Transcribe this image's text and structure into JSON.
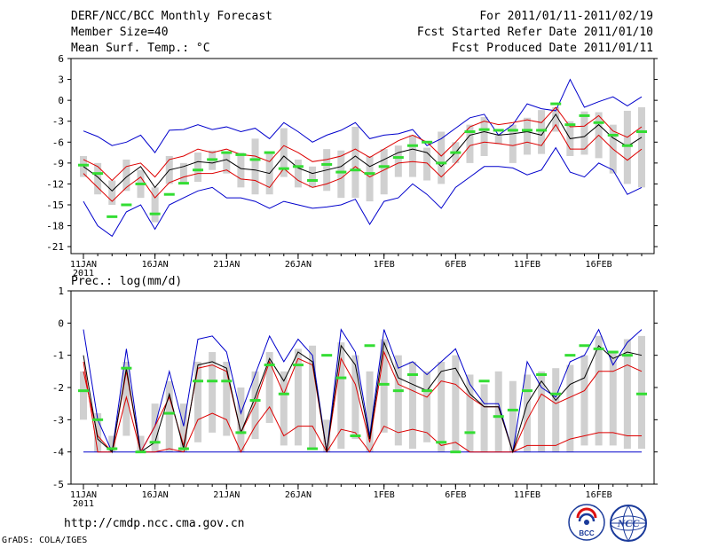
{
  "header": {
    "title": "DERF/NCC/BCC Monthly Forecast",
    "member_size": "Member Size=40",
    "variable": "Mean Surf. Temp.: °C",
    "forecast_period": "For 2011/01/11-2011/02/19",
    "fcst_started": "Fcst Started Refer Date 2011/01/10",
    "fcst_produced": "Fcst Produced Date 2011/01/11"
  },
  "footer": {
    "url": "http://cmdp.ncc.cma.gov.cn",
    "grads": "GrADS: COLA/IGES",
    "logo_bcc": "BCC",
    "logo_ncc": "NCC"
  },
  "colors": {
    "envelope": "#0000cc",
    "quartile": "#dd0000",
    "mean": "#000000",
    "box": "#d0d0d0",
    "observed": "#33dd33",
    "frame": "#000000"
  },
  "chart_data": [
    {
      "type": "line",
      "title": "Mean Surf. Temp.: °C",
      "ylim": [
        -22,
        6
      ],
      "yticks": [
        "6",
        "3",
        "0",
        "-3",
        "-6",
        "-9",
        "-12",
        "-15",
        "-18",
        "-21"
      ],
      "xtick_labels": [
        "11JAN",
        "16JAN",
        "21JAN",
        "26JAN",
        "1FEB",
        "6FEB",
        "11FEB",
        "16FEB"
      ],
      "xtick_year": "2011",
      "x_days": 40,
      "series": [
        {
          "name": "max",
          "values": [
            -4.4,
            -5.2,
            -6.5,
            -6,
            -5,
            -7.5,
            -4.3,
            -4.2,
            -3.5,
            -4.2,
            -3.8,
            -4.5,
            -4,
            -5.5,
            -3.2,
            -4.5,
            -6,
            -5,
            -4.3,
            -3.2,
            -5.5,
            -5,
            -4.8,
            -4.2,
            -6.5,
            -5.5,
            -4,
            -2.5,
            -2,
            -5,
            -3.5,
            -0.5,
            -1.2,
            -1.5,
            3,
            -1,
            -0.2,
            0.5,
            -0.8,
            0.5
          ]
        },
        {
          "name": "q75",
          "values": [
            -8.5,
            -9.5,
            -11.5,
            -9.5,
            -9,
            -11,
            -8.5,
            -8,
            -7,
            -7.5,
            -7,
            -7.8,
            -8,
            -8.8,
            -6.5,
            -7.5,
            -8.8,
            -8.5,
            -8,
            -7,
            -8.2,
            -7,
            -5.8,
            -5,
            -6,
            -8,
            -6,
            -3.8,
            -3,
            -3.5,
            -3.2,
            -2.8,
            -3.2,
            -1,
            -3.8,
            -3.7,
            -2.2,
            -4.4,
            -5.3,
            -3.8
          ]
        },
        {
          "name": "mean",
          "values": [
            -9.5,
            -11,
            -13,
            -11,
            -9.5,
            -12.5,
            -10,
            -9.5,
            -8.8,
            -9,
            -8.5,
            -9.8,
            -10,
            -10.5,
            -8,
            -9.7,
            -10.5,
            -10,
            -9.5,
            -8,
            -9.5,
            -8.5,
            -7.5,
            -7,
            -7.5,
            -9.5,
            -7.5,
            -5,
            -4.5,
            -5,
            -4.8,
            -4.5,
            -5,
            -2,
            -5.5,
            -5.2,
            -3.5,
            -5.4,
            -6.6,
            -5.3
          ]
        },
        {
          "name": "q25",
          "values": [
            -10.5,
            -12.5,
            -14.5,
            -12.5,
            -11,
            -14,
            -11.8,
            -11,
            -10.5,
            -10.5,
            -10,
            -11.3,
            -11.5,
            -12.5,
            -9.8,
            -11.5,
            -12.5,
            -12,
            -11.2,
            -9.5,
            -11,
            -10,
            -9,
            -8.8,
            -9,
            -11,
            -9,
            -6.5,
            -6,
            -6.2,
            -6.5,
            -6,
            -6.5,
            -3.5,
            -7,
            -7,
            -5,
            -7,
            -8.6,
            -7
          ]
        },
        {
          "name": "min",
          "values": [
            -14.5,
            -18,
            -19.5,
            -16,
            -15,
            -18.5,
            -15,
            -14,
            -13,
            -12.5,
            -14,
            -14,
            -14.5,
            -15.5,
            -14.5,
            -15,
            -15.5,
            -15.3,
            -15,
            -14.2,
            -17.8,
            -14.5,
            -14,
            -12,
            -13.5,
            -15.5,
            -12.5,
            -11,
            -9.5,
            -9.5,
            -9.7,
            -10.7,
            -10,
            -6.8,
            -10.3,
            -11,
            -9,
            -10,
            -13.5,
            -12.5
          ]
        },
        {
          "name": "box_top",
          "values": [
            -8,
            -9,
            -11.5,
            -8.5,
            -10,
            -12.5,
            -8,
            -9,
            -7.5,
            -7.2,
            -7.5,
            -7.5,
            -5.5,
            -7.5,
            -4,
            -8.5,
            -9.5,
            -7,
            -7.2,
            -3.8,
            -8,
            -7,
            -6.5,
            -5,
            -6.8,
            -4.5,
            -6,
            -3.5,
            -2.4,
            -5,
            -3.5,
            -2.5,
            -1.4,
            -1,
            -3,
            -1.6,
            -1.7,
            -3.5,
            -1.5,
            -1
          ]
        },
        {
          "name": "box_bottom",
          "values": [
            -11,
            -13.5,
            -15,
            -13,
            -14,
            -17.5,
            -12,
            -12,
            -11.7,
            -10,
            -10.5,
            -12.5,
            -13.5,
            -13.5,
            -11,
            -12.5,
            -12.5,
            -13,
            -14,
            -14,
            -14.5,
            -13.5,
            -11,
            -11,
            -11.5,
            -12,
            -9,
            -9,
            -8,
            -6.3,
            -9,
            -7.8,
            -7.7,
            -4.5,
            -8,
            -7.8,
            -8.3,
            -10.5,
            -12,
            -12.5
          ]
        },
        {
          "name": "observed",
          "values": [
            -9.3,
            -10.5,
            -16.7,
            -15,
            -12,
            -16.3,
            -13.5,
            -11.9,
            -10,
            -8.5,
            -7.5,
            -7.8,
            -8.5,
            -7.5,
            -9.8,
            -9.5,
            -11.5,
            -9.2,
            -10.3,
            -10,
            -10.5,
            -9.5,
            -8.2,
            -6.5,
            -6,
            -9,
            -7.5,
            -4.5,
            -4.2,
            -4.3,
            -4.3,
            -4.3,
            -4.3,
            -0.5,
            -3.5,
            -2.2,
            -3.2,
            -5,
            -6.5,
            -4.5
          ]
        }
      ]
    },
    {
      "type": "line",
      "title": "Prec.: log(mm/d)",
      "ylim": [
        -5,
        1
      ],
      "yticks": [
        "1",
        "0",
        "-1",
        "-2",
        "-3",
        "-4",
        "-5"
      ],
      "xtick_labels": [
        "11JAN",
        "16JAN",
        "21JAN",
        "26JAN",
        "1FEB",
        "6FEB",
        "11FEB",
        "16FEB"
      ],
      "xtick_year": "2011",
      "x_days": 40,
      "series": [
        {
          "name": "max",
          "values": [
            -0.2,
            -3,
            -4,
            -0.8,
            -4,
            -3.2,
            -1.5,
            -3.2,
            -0.5,
            -0.4,
            -0.9,
            -2.8,
            -1.6,
            -0.4,
            -1.2,
            -0.5,
            -1,
            -4,
            -0.2,
            -0.9,
            -3.5,
            -0.2,
            -1.4,
            -1.2,
            -1.6,
            -1.2,
            -0.8,
            -1.9,
            -2.5,
            -2.5,
            -4,
            -1.2,
            -2,
            -2.3,
            -1.2,
            -1,
            -0.2,
            -1.3,
            -0.6,
            -0.2
          ]
        },
        {
          "name": "q75",
          "values": [
            -1.5,
            -3.5,
            -4,
            -1.5,
            -4,
            -3.2,
            -2.3,
            -3.8,
            -1.4,
            -1.3,
            -1.5,
            -3.4,
            -2.5,
            -1.2,
            -2.2,
            -1.1,
            -1.3,
            -4,
            -1.1,
            -1.9,
            -3.7,
            -0.9,
            -1.9,
            -2.1,
            -2.3,
            -1.8,
            -1.9,
            -2.3,
            -2.6,
            -2.6,
            -4,
            -3,
            -2.2,
            -2.5,
            -2.3,
            -2.1,
            -1.5,
            -1.5,
            -1.3,
            -1.5
          ]
        },
        {
          "name": "mean",
          "values": [
            -1,
            -3.6,
            -4,
            -1.4,
            -4,
            -3.7,
            -2.2,
            -3.9,
            -1.3,
            -1.2,
            -1.4,
            -3.4,
            -2.3,
            -1.1,
            -1.8,
            -0.9,
            -1.2,
            -4,
            -0.7,
            -1.3,
            -3.6,
            -0.6,
            -1.7,
            -1.9,
            -2.1,
            -1.5,
            -1.4,
            -2.2,
            -2.6,
            -2.6,
            -4,
            -2.5,
            -1.8,
            -2.4,
            -1.9,
            -1.7,
            -0.7,
            -1.1,
            -0.9,
            -1
          ]
        },
        {
          "name": "q25",
          "values": [
            -1.2,
            -4,
            -4,
            -2.3,
            -4,
            -4,
            -3.9,
            -4,
            -3,
            -2.8,
            -3,
            -4,
            -3.2,
            -2.6,
            -3.5,
            -3.2,
            -3.2,
            -4,
            -3.3,
            -3.4,
            -4,
            -3.2,
            -3.4,
            -3.3,
            -3.4,
            -3.8,
            -3.7,
            -4,
            -4,
            -4,
            -4,
            -3.8,
            -3.8,
            -3.8,
            -3.6,
            -3.5,
            -3.4,
            -3.4,
            -3.5,
            -3.5
          ]
        },
        {
          "name": "min",
          "values": [
            -4,
            -4,
            -4,
            -4,
            -4,
            -4,
            -4,
            -4,
            -4,
            -4,
            -4,
            -4,
            -4,
            -4,
            -4,
            -4,
            -4,
            -4,
            -4,
            -4,
            -4,
            -4,
            -4,
            -4,
            -4,
            -4,
            -4,
            -4,
            -4,
            -4,
            -4,
            -4,
            -4,
            -4,
            -4,
            -4,
            -4,
            -4,
            -4,
            -4
          ]
        },
        {
          "name": "box_top",
          "values": [
            -1.5,
            -2.8,
            -3.5,
            -1.2,
            -3.5,
            -2.5,
            -1.8,
            -2.5,
            -1.2,
            -0.9,
            -1.2,
            -2,
            -1.5,
            -0.9,
            -1.5,
            -0.8,
            -0.7,
            -3,
            -0.6,
            -1,
            -1.5,
            -0.5,
            -1,
            -1.2,
            -1.5,
            -1.2,
            -1,
            -1.6,
            -1.9,
            -1.5,
            -1.8,
            -1.6,
            -1.5,
            -1.4,
            -1.3,
            -1,
            -0.4,
            -0.9,
            -0.5,
            -0.4
          ]
        },
        {
          "name": "box_bottom",
          "values": [
            -3,
            -4,
            -4,
            -3.5,
            -4,
            -4,
            -4,
            -4,
            -3.7,
            -3.4,
            -3.5,
            -4,
            -3.6,
            -3.1,
            -3.8,
            -3.8,
            -3.9,
            -4,
            -3.9,
            -3.6,
            -4,
            -3.4,
            -3.8,
            -3.9,
            -3.7,
            -4,
            -4,
            -4,
            -4,
            -4,
            -4,
            -4,
            -4,
            -4,
            -4,
            -3.8,
            -3.8,
            -3.8,
            -3.9,
            -3.9
          ]
        },
        {
          "name": "observed",
          "values": [
            -2.1,
            -3,
            -3.9,
            -1.4,
            -4,
            -3.7,
            -2.8,
            -3.9,
            -1.8,
            -1.8,
            -1.8,
            -3.4,
            -2.4,
            -1.3,
            -2.2,
            -1.3,
            -3.9,
            -1,
            -1.7,
            -3.5,
            -0.7,
            -1.9,
            -2.1,
            -1.6,
            -2.1,
            -3.7,
            -4,
            -3.4,
            -1.8,
            -2.9,
            -2.7,
            -2.1,
            -1.6,
            -2.2,
            -1,
            -0.7,
            -0.8,
            -0.9,
            -1,
            -2.2
          ]
        }
      ]
    }
  ]
}
